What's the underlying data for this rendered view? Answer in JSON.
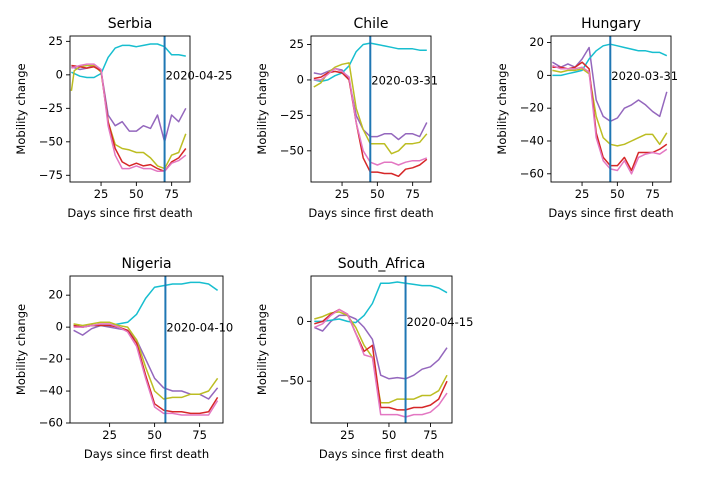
{
  "chart_data": [
    {
      "type": "line",
      "title": "Serbia",
      "xlabel": "Days since first death",
      "ylabel": "Mobility change",
      "xlim": [
        3,
        88
      ],
      "ylim": [
        -80,
        29
      ],
      "xticks": [
        25,
        50,
        75
      ],
      "yticks": [
        25,
        0,
        -25,
        -50,
        -75
      ],
      "vline": {
        "x": 70,
        "label": "2020-04-25",
        "color": "#1f77b4"
      },
      "series": [
        {
          "color": "#9467bd",
          "x": [
            4,
            10,
            15,
            20,
            25,
            30,
            35,
            40,
            45,
            50,
            55,
            60,
            65,
            70,
            75,
            80,
            85
          ],
          "y": [
            6,
            4,
            5,
            7,
            3,
            -30,
            -38,
            -35,
            -42,
            -42,
            -38,
            -40,
            -30,
            -50,
            -30,
            -35,
            -25
          ]
        },
        {
          "color": "#17becf",
          "x": [
            4,
            10,
            15,
            20,
            25,
            30,
            35,
            40,
            45,
            50,
            55,
            60,
            65,
            70,
            75,
            80,
            85
          ],
          "y": [
            2,
            -1,
            -2,
            -2,
            1,
            13,
            20,
            22,
            22,
            21,
            22,
            23,
            23,
            21,
            15,
            15,
            14
          ]
        },
        {
          "color": "#bcbd22",
          "x": [
            4,
            6,
            10,
            15,
            20,
            25,
            30,
            35,
            40,
            45,
            50,
            55,
            60,
            65,
            70,
            75,
            80,
            85
          ],
          "y": [
            -12,
            3,
            6,
            7,
            7,
            2,
            -35,
            -52,
            -55,
            -56,
            -58,
            -58,
            -62,
            -68,
            -70,
            -60,
            -58,
            -44
          ]
        },
        {
          "color": "#d62728",
          "x": [
            4,
            10,
            15,
            20,
            25,
            30,
            35,
            40,
            45,
            50,
            55,
            60,
            65,
            70,
            75,
            80,
            85
          ],
          "y": [
            7,
            6,
            5,
            6,
            3,
            -35,
            -55,
            -65,
            -68,
            -66,
            -68,
            -67,
            -70,
            -72,
            -65,
            -62,
            -55
          ]
        },
        {
          "color": "#e377c2",
          "x": [
            4,
            10,
            15,
            20,
            25,
            30,
            35,
            40,
            45,
            50,
            55,
            60,
            65,
            70,
            75,
            80,
            85
          ],
          "y": [
            5,
            7,
            8,
            8,
            4,
            -38,
            -60,
            -70,
            -70,
            -68,
            -70,
            -70,
            -72,
            -72,
            -66,
            -64,
            -60
          ]
        }
      ]
    },
    {
      "type": "line",
      "title": "Chile",
      "xlabel": "Days since first death",
      "ylabel": "Mobility change",
      "xlim": [
        3,
        88
      ],
      "ylim": [
        -72,
        31
      ],
      "xticks": [
        25,
        50,
        75
      ],
      "yticks": [
        25,
        0,
        -25,
        -50
      ],
      "vline": {
        "x": 45,
        "label": "2020-03-31",
        "color": "#1f77b4"
      },
      "series": [
        {
          "color": "#9467bd",
          "x": [
            5,
            10,
            15,
            20,
            25,
            30,
            35,
            40,
            45,
            50,
            55,
            60,
            65,
            70,
            75,
            80,
            85
          ],
          "y": [
            5,
            4,
            6,
            8,
            7,
            0,
            -25,
            -35,
            -40,
            -40,
            -38,
            -38,
            -42,
            -38,
            -38,
            -40,
            -30
          ]
        },
        {
          "color": "#17becf",
          "x": [
            5,
            10,
            15,
            20,
            25,
            30,
            35,
            40,
            45,
            50,
            55,
            60,
            65,
            70,
            75,
            80,
            85
          ],
          "y": [
            0,
            -1,
            0,
            3,
            5,
            10,
            20,
            25,
            26,
            25,
            24,
            23,
            22,
            22,
            22,
            21,
            21
          ]
        },
        {
          "color": "#bcbd22",
          "x": [
            5,
            10,
            15,
            20,
            25,
            30,
            35,
            40,
            45,
            50,
            55,
            60,
            65,
            70,
            75,
            80,
            85
          ],
          "y": [
            -5,
            -2,
            5,
            9,
            11,
            12,
            -20,
            -35,
            -45,
            -45,
            -45,
            -52,
            -50,
            -45,
            -45,
            -44,
            -38
          ]
        },
        {
          "color": "#d62728",
          "x": [
            5,
            10,
            15,
            20,
            25,
            30,
            35,
            40,
            45,
            50,
            55,
            60,
            65,
            70,
            75,
            80,
            85
          ],
          "y": [
            1,
            2,
            5,
            6,
            5,
            0,
            -30,
            -55,
            -65,
            -65,
            -66,
            -66,
            -68,
            -63,
            -62,
            -60,
            -56
          ]
        },
        {
          "color": "#e377c2",
          "x": [
            5,
            10,
            15,
            20,
            25,
            30,
            35,
            40,
            45,
            50,
            55,
            60,
            65,
            70,
            75,
            80,
            85
          ],
          "y": [
            0,
            0,
            4,
            8,
            6,
            2,
            -30,
            -50,
            -58,
            -60,
            -58,
            -58,
            -60,
            -58,
            -57,
            -57,
            -55
          ]
        }
      ]
    },
    {
      "type": "line",
      "title": "Hungary",
      "xlabel": "Days since first death",
      "ylabel": "Mobility change",
      "xlim": [
        3,
        88
      ],
      "ylim": [
        -65,
        24
      ],
      "xticks": [
        25,
        50,
        75
      ],
      "yticks": [
        20,
        0,
        -20,
        -40,
        -60
      ],
      "vline": {
        "x": 45,
        "label": "2020-03-31",
        "color": "#1f77b4"
      },
      "series": [
        {
          "color": "#9467bd",
          "x": [
            4,
            10,
            15,
            20,
            25,
            30,
            35,
            40,
            45,
            50,
            55,
            60,
            65,
            70,
            75,
            80,
            85
          ],
          "y": [
            8,
            5,
            7,
            5,
            10,
            17,
            -15,
            -25,
            -28,
            -26,
            -20,
            -18,
            -15,
            -18,
            -22,
            -25,
            -10
          ]
        },
        {
          "color": "#17becf",
          "x": [
            4,
            10,
            15,
            20,
            25,
            30,
            35,
            40,
            45,
            50,
            55,
            60,
            65,
            70,
            75,
            80,
            85
          ],
          "y": [
            0,
            0,
            1,
            2,
            3,
            10,
            15,
            18,
            19,
            18,
            17,
            16,
            15,
            15,
            14,
            14,
            12
          ]
        },
        {
          "color": "#bcbd22",
          "x": [
            4,
            10,
            15,
            20,
            25,
            30,
            35,
            40,
            45,
            50,
            55,
            60,
            65,
            70,
            75,
            80,
            85
          ],
          "y": [
            3,
            2,
            3,
            3,
            4,
            1,
            -25,
            -38,
            -42,
            -43,
            -42,
            -40,
            -38,
            -36,
            -36,
            -42,
            -35
          ]
        },
        {
          "color": "#d62728",
          "x": [
            4,
            10,
            15,
            20,
            25,
            30,
            35,
            40,
            45,
            50,
            55,
            60,
            65,
            70,
            75,
            80,
            85
          ],
          "y": [
            5,
            5,
            4,
            5,
            8,
            4,
            -35,
            -50,
            -55,
            -55,
            -50,
            -58,
            -47,
            -47,
            -47,
            -45,
            -42
          ]
        },
        {
          "color": "#e377c2",
          "x": [
            4,
            10,
            15,
            20,
            25,
            30,
            35,
            40,
            45,
            50,
            55,
            60,
            65,
            70,
            75,
            80,
            85
          ],
          "y": [
            6,
            4,
            4,
            4,
            5,
            2,
            -38,
            -52,
            -57,
            -58,
            -52,
            -60,
            -50,
            -48,
            -47,
            -48,
            -45
          ]
        }
      ]
    },
    {
      "type": "line",
      "title": "Nigeria",
      "xlabel": "Days since first death",
      "ylabel": "Mobility change",
      "xlim": [
        3,
        88
      ],
      "ylim": [
        -60,
        32
      ],
      "xticks": [
        25,
        50,
        75
      ],
      "yticks": [
        20,
        0,
        -20,
        -40,
        -60
      ],
      "vline": {
        "x": 56,
        "label": "2020-04-10",
        "color": "#1f77b4"
      },
      "series": [
        {
          "color": "#9467bd",
          "x": [
            5,
            10,
            15,
            20,
            25,
            30,
            35,
            40,
            45,
            50,
            55,
            60,
            65,
            70,
            75,
            80,
            85
          ],
          "y": [
            -2,
            -5,
            -1,
            1,
            0,
            -1,
            -2,
            -8,
            -20,
            -32,
            -38,
            -40,
            -40,
            -42,
            -42,
            -45,
            -38
          ]
        },
        {
          "color": "#17becf",
          "x": [
            5,
            10,
            15,
            20,
            25,
            30,
            35,
            40,
            45,
            50,
            55,
            60,
            65,
            70,
            75,
            80,
            85
          ],
          "y": [
            1,
            0,
            1,
            1,
            1,
            2,
            3,
            8,
            18,
            25,
            26,
            27,
            27,
            28,
            28,
            27,
            23
          ]
        },
        {
          "color": "#bcbd22",
          "x": [
            5,
            10,
            15,
            20,
            25,
            30,
            35,
            40,
            45,
            50,
            55,
            60,
            65,
            70,
            75,
            80,
            85
          ],
          "y": [
            2,
            1,
            2,
            3,
            3,
            1,
            0,
            -8,
            -25,
            -40,
            -45,
            -44,
            -44,
            -42,
            -42,
            -40,
            -32
          ]
        },
        {
          "color": "#d62728",
          "x": [
            5,
            10,
            15,
            20,
            25,
            30,
            35,
            40,
            45,
            50,
            55,
            60,
            65,
            70,
            75,
            80,
            85
          ],
          "y": [
            1,
            0,
            1,
            1,
            1,
            0,
            -2,
            -10,
            -30,
            -48,
            -52,
            -53,
            -53,
            -54,
            -54,
            -53,
            -44
          ]
        },
        {
          "color": "#e377c2",
          "x": [
            5,
            10,
            15,
            20,
            25,
            30,
            35,
            40,
            45,
            50,
            55,
            60,
            65,
            70,
            75,
            80,
            85
          ],
          "y": [
            0,
            0,
            1,
            2,
            2,
            0,
            -3,
            -12,
            -32,
            -50,
            -54,
            -54,
            -55,
            -55,
            -55,
            -55,
            -46
          ]
        }
      ]
    },
    {
      "type": "line",
      "title": "South_Africa",
      "xlabel": "Days since first death",
      "ylabel": "Mobility change",
      "xlim": [
        3,
        88
      ],
      "ylim": [
        -85,
        38
      ],
      "xticks": [
        25,
        50,
        75
      ],
      "yticks": [
        0,
        -50
      ],
      "vline": {
        "x": 60,
        "label": "2020-04-15",
        "color": "#1f77b4"
      },
      "series": [
        {
          "color": "#9467bd",
          "x": [
            5,
            10,
            15,
            20,
            25,
            30,
            35,
            40,
            45,
            50,
            55,
            60,
            65,
            70,
            75,
            80,
            85
          ],
          "y": [
            -5,
            -8,
            0,
            5,
            5,
            2,
            -5,
            -15,
            -45,
            -48,
            -47,
            -48,
            -45,
            -40,
            -38,
            -32,
            -22
          ]
        },
        {
          "color": "#17becf",
          "x": [
            5,
            10,
            15,
            20,
            25,
            30,
            35,
            40,
            45,
            50,
            55,
            60,
            65,
            70,
            75,
            80,
            85
          ],
          "y": [
            0,
            0,
            1,
            2,
            0,
            -1,
            5,
            15,
            32,
            32,
            33,
            32,
            31,
            30,
            30,
            28,
            24
          ]
        },
        {
          "color": "#bcbd22",
          "x": [
            5,
            10,
            15,
            20,
            25,
            30,
            35,
            40,
            45,
            50,
            55,
            60,
            65,
            70,
            75,
            80,
            85
          ],
          "y": [
            2,
            4,
            7,
            8,
            5,
            -5,
            -20,
            -30,
            -68,
            -68,
            -65,
            -65,
            -65,
            -62,
            -62,
            -58,
            -45
          ]
        },
        {
          "color": "#d62728",
          "x": [
            5,
            10,
            15,
            20,
            25,
            30,
            35,
            40,
            45,
            50,
            55,
            60,
            65,
            70,
            75,
            80,
            85
          ],
          "y": [
            -2,
            0,
            6,
            10,
            6,
            -10,
            -25,
            -20,
            -72,
            -72,
            -74,
            -74,
            -72,
            -72,
            -70,
            -65,
            -50
          ]
        },
        {
          "color": "#e377c2",
          "x": [
            5,
            10,
            15,
            20,
            25,
            30,
            35,
            40,
            45,
            50,
            55,
            60,
            65,
            70,
            75,
            80,
            85
          ],
          "y": [
            -5,
            -2,
            5,
            10,
            6,
            -10,
            -28,
            -30,
            -78,
            -78,
            -78,
            -80,
            -78,
            -78,
            -76,
            -70,
            -60
          ]
        }
      ]
    }
  ]
}
